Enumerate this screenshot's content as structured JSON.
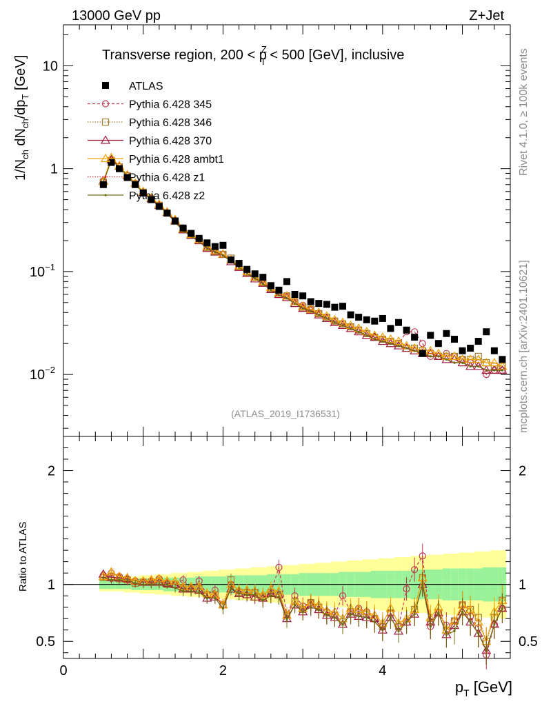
{
  "header": {
    "left": "13000 GeV pp",
    "right": "Z+Jet"
  },
  "side": {
    "rivet": "Rivet 4.1.0, ≥ 100k events",
    "mcplots": "mcplots.cern.ch [arXiv:2401.10621]"
  },
  "watermark": "(ATLAS_2019_I1736531)",
  "chart_data": [
    {
      "type": "scatter",
      "panel": "main",
      "title": "Transverse region, 200 < p_T^Z < 500 [GeV], inclusive",
      "title_parts": {
        "a": "Transverse region, 200 < p",
        "sub": "T",
        "sup": "Z",
        "b": " < 500 [GeV], inclusive"
      },
      "ylabel": "1/N_ch dN_ch/dp_T [GeV]",
      "xlabel": "p_T [GeV]",
      "yscale": "log",
      "xlim": [
        0,
        5.6
      ],
      "ylim": [
        0.0025,
        25
      ],
      "y_ticks": [
        {
          "v": 0.01,
          "base": "10",
          "exp": "−2"
        },
        {
          "v": 0.1,
          "base": "10",
          "exp": "−1"
        },
        {
          "v": 1,
          "base": "1",
          "exp": ""
        },
        {
          "v": 10,
          "base": "10",
          "exp": ""
        }
      ],
      "x_ticks": [
        {
          "v": 0,
          "label": "0"
        },
        {
          "v": 2,
          "label": "2"
        },
        {
          "v": 4,
          "label": "4"
        }
      ],
      "legend_position": "top-left",
      "x": [
        0.5,
        0.6,
        0.7,
        0.8,
        0.9,
        1.0,
        1.1,
        1.2,
        1.3,
        1.4,
        1.5,
        1.6,
        1.7,
        1.8,
        1.9,
        2.0,
        2.1,
        2.2,
        2.3,
        2.4,
        2.5,
        2.6,
        2.7,
        2.8,
        2.9,
        3.0,
        3.1,
        3.2,
        3.3,
        3.4,
        3.5,
        3.6,
        3.7,
        3.8,
        3.9,
        4.0,
        4.1,
        4.2,
        4.3,
        4.4,
        4.5,
        4.6,
        4.7,
        4.8,
        4.9,
        5.0,
        5.1,
        5.2,
        5.3,
        5.4,
        5.5
      ],
      "series": [
        {
          "name": "ATLAS",
          "color": "#000000",
          "marker": "filled-square",
          "values": [
            0.7,
            1.15,
            1.0,
            0.82,
            0.7,
            0.58,
            0.5,
            0.43,
            0.37,
            0.31,
            0.265,
            0.235,
            0.21,
            0.19,
            0.175,
            0.18,
            0.13,
            0.12,
            0.105,
            0.095,
            0.088,
            0.073,
            0.066,
            0.08,
            0.06,
            0.058,
            0.051,
            0.049,
            0.048,
            0.045,
            0.046,
            0.038,
            0.036,
            0.034,
            0.033,
            0.035,
            0.028,
            0.032,
            0.027,
            0.023,
            0.016,
            0.024,
            0.02,
            0.025,
            0.022,
            0.017,
            0.018,
            0.021,
            0.026,
            0.017,
            0.014
          ]
        },
        {
          "name": "Pythia 6.428 345",
          "color": "#c0394f",
          "marker": "open-circle",
          "values": [
            0.76,
            1.22,
            1.05,
            0.86,
            0.72,
            0.59,
            0.51,
            0.44,
            0.375,
            0.31,
            0.255,
            0.225,
            0.205,
            0.172,
            0.158,
            0.147,
            0.129,
            0.112,
            0.098,
            0.088,
            0.078,
            0.068,
            0.062,
            0.058,
            0.051,
            0.047,
            0.043,
            0.039,
            0.036,
            0.033,
            0.031,
            0.029,
            0.027,
            0.025,
            0.023,
            0.022,
            0.021,
            0.02,
            0.026,
            0.026,
            0.02,
            0.015,
            0.015,
            0.016,
            0.015,
            0.014,
            0.013,
            0.013,
            0.01,
            0.011,
            0.011
          ]
        },
        {
          "name": "Pythia 6.428 346",
          "color": "#a07a2e",
          "marker": "open-square",
          "values": [
            0.74,
            1.2,
            1.04,
            0.85,
            0.71,
            0.59,
            0.51,
            0.44,
            0.37,
            0.31,
            0.255,
            0.225,
            0.2,
            0.172,
            0.158,
            0.147,
            0.135,
            0.112,
            0.098,
            0.088,
            0.078,
            0.068,
            0.06,
            0.058,
            0.051,
            0.045,
            0.043,
            0.039,
            0.036,
            0.033,
            0.031,
            0.029,
            0.027,
            0.025,
            0.023,
            0.022,
            0.021,
            0.02,
            0.018,
            0.018,
            0.017,
            0.016,
            0.015,
            0.015,
            0.015,
            0.014,
            0.014,
            0.015,
            0.013,
            0.012,
            0.012
          ]
        },
        {
          "name": "Pythia 6.428 370",
          "color": "#a01a3a",
          "marker": "open-triangle",
          "values": [
            0.76,
            1.22,
            1.06,
            0.86,
            0.72,
            0.59,
            0.51,
            0.44,
            0.375,
            0.31,
            0.255,
            0.225,
            0.2,
            0.168,
            0.155,
            0.147,
            0.125,
            0.11,
            0.096,
            0.085,
            0.077,
            0.067,
            0.06,
            0.056,
            0.049,
            0.044,
            0.042,
            0.038,
            0.035,
            0.032,
            0.03,
            0.028,
            0.026,
            0.024,
            0.023,
            0.021,
            0.02,
            0.019,
            0.018,
            0.017,
            0.016,
            0.016,
            0.015,
            0.014,
            0.014,
            0.013,
            0.012,
            0.012,
            0.011,
            0.011,
            0.011
          ]
        },
        {
          "name": "Pythia 6.428 ambt1",
          "color": "#f0a000",
          "marker": "open-triangle",
          "values": [
            0.75,
            1.28,
            1.07,
            0.87,
            0.72,
            0.6,
            0.52,
            0.45,
            0.38,
            0.32,
            0.26,
            0.23,
            0.205,
            0.175,
            0.16,
            0.148,
            0.13,
            0.114,
            0.1,
            0.089,
            0.08,
            0.07,
            0.062,
            0.058,
            0.051,
            0.046,
            0.043,
            0.04,
            0.037,
            0.034,
            0.032,
            0.03,
            0.028,
            0.026,
            0.024,
            0.023,
            0.022,
            0.021,
            0.019,
            0.018,
            0.017,
            0.017,
            0.016,
            0.015,
            0.015,
            0.014,
            0.014,
            0.014,
            0.013,
            0.013,
            0.012
          ]
        },
        {
          "name": "Pythia 6.428 z1",
          "color": "#d42020",
          "marker": "dot",
          "values": [
            0.74,
            1.19,
            1.03,
            0.84,
            0.7,
            0.58,
            0.5,
            0.43,
            0.37,
            0.3,
            0.25,
            0.22,
            0.195,
            0.168,
            0.154,
            0.143,
            0.126,
            0.11,
            0.096,
            0.086,
            0.076,
            0.066,
            0.059,
            0.055,
            0.049,
            0.044,
            0.041,
            0.038,
            0.035,
            0.032,
            0.03,
            0.028,
            0.026,
            0.024,
            0.022,
            0.021,
            0.02,
            0.019,
            0.018,
            0.017,
            0.016,
            0.015,
            0.015,
            0.014,
            0.013,
            0.013,
            0.012,
            0.012,
            0.011,
            0.011,
            0.011
          ]
        },
        {
          "name": "Pythia 6.428 z2",
          "color": "#6b6b10",
          "marker": "dot",
          "values": [
            0.74,
            1.2,
            1.04,
            0.85,
            0.71,
            0.58,
            0.5,
            0.43,
            0.37,
            0.3,
            0.25,
            0.22,
            0.195,
            0.168,
            0.154,
            0.143,
            0.126,
            0.11,
            0.096,
            0.086,
            0.076,
            0.066,
            0.059,
            0.055,
            0.049,
            0.044,
            0.041,
            0.038,
            0.035,
            0.032,
            0.03,
            0.028,
            0.026,
            0.024,
            0.022,
            0.021,
            0.02,
            0.019,
            0.018,
            0.017,
            0.016,
            0.015,
            0.015,
            0.014,
            0.013,
            0.013,
            0.012,
            0.012,
            0.011,
            0.011,
            0.011
          ]
        }
      ]
    },
    {
      "type": "line",
      "panel": "ratio",
      "ylabel": "Ratio to ATLAS",
      "xlabel": "p_T [GeV]",
      "xlim": [
        0,
        5.6
      ],
      "ylim": [
        0.35,
        2.3
      ],
      "y_ticks": [
        {
          "v": 0.5,
          "label": "0.5"
        },
        {
          "v": 1,
          "label": "1"
        },
        {
          "v": 2,
          "label": "2"
        }
      ],
      "x_ticks": [
        {
          "v": 0,
          "label": "0"
        },
        {
          "v": 2,
          "label": "2"
        },
        {
          "v": 4,
          "label": "4"
        }
      ],
      "x_label_base": "p",
      "x_label_sub": "T",
      "x_label_unit": " [GeV]",
      "reference": 1,
      "band_inner_halfwidth": [
        0.04,
        0.04,
        0.04,
        0.04,
        0.05,
        0.05,
        0.05,
        0.05,
        0.06,
        0.06,
        0.06,
        0.06,
        0.07,
        0.07,
        0.07,
        0.07,
        0.08,
        0.08,
        0.08,
        0.08,
        0.08,
        0.09,
        0.09,
        0.09,
        0.09,
        0.1,
        0.1,
        0.1,
        0.1,
        0.1,
        0.11,
        0.11,
        0.11,
        0.11,
        0.12,
        0.12,
        0.12,
        0.12,
        0.12,
        0.13,
        0.13,
        0.13,
        0.13,
        0.14,
        0.14,
        0.14,
        0.14,
        0.14,
        0.15,
        0.15,
        0.15
      ],
      "band_outer_halfwidth": [
        0.06,
        0.06,
        0.06,
        0.07,
        0.07,
        0.08,
        0.08,
        0.09,
        0.09,
        0.1,
        0.1,
        0.11,
        0.11,
        0.12,
        0.12,
        0.13,
        0.13,
        0.14,
        0.14,
        0.15,
        0.15,
        0.16,
        0.16,
        0.17,
        0.17,
        0.18,
        0.18,
        0.19,
        0.19,
        0.2,
        0.2,
        0.21,
        0.21,
        0.22,
        0.22,
        0.23,
        0.23,
        0.24,
        0.24,
        0.25,
        0.25,
        0.26,
        0.26,
        0.27,
        0.27,
        0.28,
        0.28,
        0.29,
        0.29,
        0.3,
        0.3
      ],
      "series": [
        {
          "name": "Pythia 6.428 345",
          "values": [
            1.08,
            1.1,
            1.07,
            1.05,
            1.03,
            1.02,
            1.03,
            1.05,
            1.01,
            1.0,
            1.04,
            0.96,
            1.03,
            0.91,
            0.95,
            0.82,
            1.0,
            0.94,
            0.93,
            0.93,
            0.89,
            0.93,
            1.15,
            0.73,
            0.9,
            0.81,
            0.84,
            0.8,
            0.76,
            0.73,
            0.9,
            0.76,
            0.79,
            0.76,
            0.7,
            0.63,
            0.75,
            0.63,
            0.96,
            1.13,
            1.25,
            0.63,
            0.75,
            0.64,
            0.68,
            0.82,
            0.72,
            0.62,
            0.38,
            0.65,
            0.79
          ]
        },
        {
          "name": "Pythia 6.428 346",
          "values": [
            1.06,
            1.07,
            1.05,
            1.04,
            1.01,
            1.02,
            1.02,
            1.03,
            1.0,
            1.0,
            0.97,
            0.96,
            0.96,
            0.91,
            0.91,
            0.82,
            1.04,
            0.93,
            0.93,
            0.93,
            0.89,
            0.93,
            0.91,
            0.73,
            0.85,
            0.78,
            0.84,
            0.8,
            0.75,
            0.73,
            0.67,
            0.76,
            0.75,
            0.74,
            0.7,
            0.63,
            0.75,
            0.63,
            0.67,
            0.78,
            1.06,
            0.67,
            0.75,
            0.6,
            0.68,
            0.82,
            0.78,
            0.71,
            0.5,
            0.71,
            0.86
          ]
        },
        {
          "name": "Pythia 6.428 370",
          "values": [
            1.09,
            1.06,
            1.06,
            1.05,
            1.03,
            1.02,
            1.02,
            1.02,
            1.01,
            1.0,
            0.96,
            0.96,
            0.95,
            0.88,
            0.89,
            0.82,
            0.96,
            0.92,
            0.91,
            0.89,
            0.88,
            0.92,
            0.91,
            0.7,
            0.82,
            0.76,
            0.82,
            0.78,
            0.73,
            0.71,
            0.65,
            0.74,
            0.72,
            0.71,
            0.7,
            0.6,
            0.71,
            0.59,
            0.67,
            0.74,
            1.0,
            0.67,
            0.75,
            0.56,
            0.64,
            0.76,
            0.67,
            0.57,
            0.42,
            0.65,
            0.79
          ]
        },
        {
          "name": "Pythia 6.428 ambt1",
          "values": [
            1.07,
            1.11,
            1.07,
            1.06,
            1.03,
            1.03,
            1.04,
            1.05,
            1.03,
            1.03,
            0.98,
            0.98,
            0.98,
            0.92,
            0.91,
            0.82,
            1.0,
            0.95,
            0.95,
            0.94,
            0.91,
            0.96,
            0.94,
            0.73,
            0.85,
            0.79,
            0.84,
            0.82,
            0.77,
            0.76,
            0.7,
            0.79,
            0.78,
            0.76,
            0.73,
            0.66,
            0.79,
            0.66,
            0.7,
            0.78,
            1.06,
            0.71,
            0.8,
            0.6,
            0.68,
            0.82,
            0.78,
            0.67,
            0.5,
            0.76,
            0.86
          ]
        },
        {
          "name": "Pythia 6.428 z1",
          "values": [
            1.06,
            1.03,
            1.03,
            1.02,
            1.0,
            1.0,
            1.0,
            1.0,
            1.0,
            0.97,
            0.94,
            0.94,
            0.93,
            0.88,
            0.88,
            0.79,
            0.97,
            0.92,
            0.91,
            0.91,
            0.86,
            0.9,
            0.89,
            0.69,
            0.82,
            0.76,
            0.8,
            0.78,
            0.73,
            0.71,
            0.65,
            0.74,
            0.72,
            0.71,
            0.67,
            0.6,
            0.71,
            0.59,
            0.67,
            0.74,
            1.0,
            0.63,
            0.75,
            0.56,
            0.59,
            0.76,
            0.67,
            0.57,
            0.42,
            0.65,
            0.79
          ]
        },
        {
          "name": "Pythia 6.428 z2",
          "values": [
            1.06,
            1.04,
            1.04,
            1.04,
            1.01,
            1.0,
            1.0,
            1.0,
            1.0,
            0.97,
            0.94,
            0.94,
            0.93,
            0.88,
            0.88,
            0.79,
            0.97,
            0.92,
            0.91,
            0.91,
            0.86,
            0.9,
            0.89,
            0.69,
            0.82,
            0.76,
            0.8,
            0.78,
            0.73,
            0.71,
            0.65,
            0.74,
            0.72,
            0.71,
            0.67,
            0.6,
            0.71,
            0.59,
            0.67,
            0.74,
            1.0,
            0.63,
            0.75,
            0.56,
            0.59,
            0.76,
            0.67,
            0.57,
            0.42,
            0.65,
            0.79
          ]
        }
      ]
    }
  ]
}
